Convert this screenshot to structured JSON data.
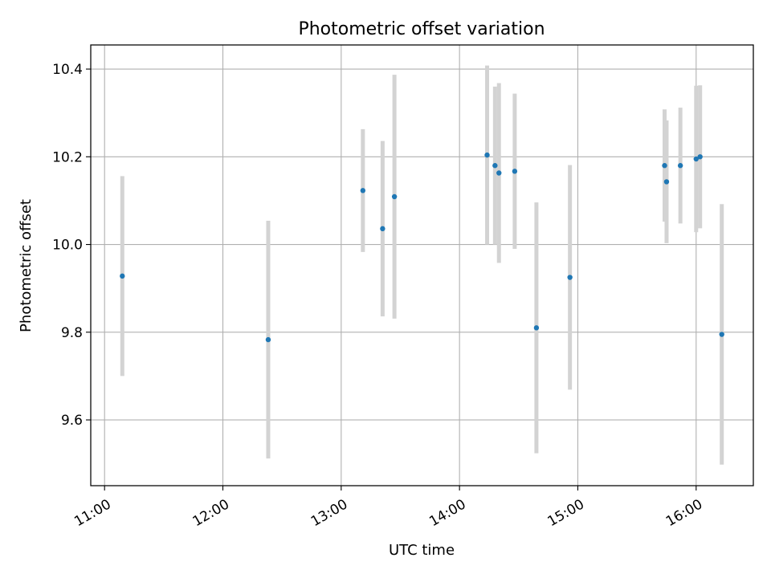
{
  "chart_data": {
    "type": "scatter",
    "title": "Photometric offset variation",
    "xlabel": "UTC time",
    "ylabel": "Photometric offset",
    "x_axis_type": "time",
    "xlim": [
      "10:53",
      "16:29"
    ],
    "ylim": [
      9.45,
      10.455
    ],
    "grid": true,
    "xticks": [
      "11:00",
      "12:00",
      "13:00",
      "14:00",
      "15:00",
      "16:00"
    ],
    "yticks": [
      "9.6",
      "9.8",
      "10.0",
      "10.2",
      "10.4"
    ],
    "colors": {
      "point": "#1f77b4",
      "errorbar": "#d3d3d3",
      "grid": "#b0b0b0"
    },
    "points": [
      {
        "x": "11:09",
        "y": 9.928,
        "err": 0.228
      },
      {
        "x": "12:23",
        "y": 9.783,
        "err": 0.271
      },
      {
        "x": "13:11",
        "y": 10.123,
        "err": 0.14
      },
      {
        "x": "13:21",
        "y": 10.036,
        "err": 0.2
      },
      {
        "x": "13:27",
        "y": 10.109,
        "err": 0.278
      },
      {
        "x": "14:14",
        "y": 10.204,
        "err": 0.204
      },
      {
        "x": "14:18",
        "y": 10.18,
        "err": 0.18
      },
      {
        "x": "14:20",
        "y": 10.163,
        "err": 0.205
      },
      {
        "x": "14:28",
        "y": 10.167,
        "err": 0.177
      },
      {
        "x": "14:39",
        "y": 9.81,
        "err": 0.286
      },
      {
        "x": "14:56",
        "y": 9.925,
        "err": 0.256
      },
      {
        "x": "15:44",
        "y": 10.18,
        "err": 0.128
      },
      {
        "x": "15:45",
        "y": 10.143,
        "err": 0.14
      },
      {
        "x": "15:52",
        "y": 10.18,
        "err": 0.132
      },
      {
        "x": "16:00",
        "y": 10.195,
        "err": 0.167
      },
      {
        "x": "16:02",
        "y": 10.2,
        "err": 0.163
      },
      {
        "x": "16:13",
        "y": 9.795,
        "err": 0.297
      }
    ]
  }
}
